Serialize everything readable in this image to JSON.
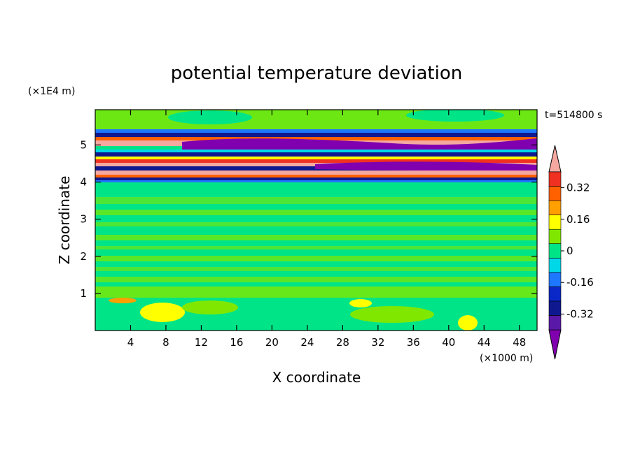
{
  "chart_data": {
    "type": "heatmap",
    "title": "potential temperature deviation",
    "xlabel": "X coordinate",
    "ylabel": "Z coordinate",
    "x_unit": "(×1000 m)",
    "y_unit": "(×1E4 m)",
    "time_label": "t=514800 s",
    "xlim": [
      0,
      50
    ],
    "ylim": [
      0,
      5.95
    ],
    "x_ticks": [
      4,
      8,
      12,
      16,
      20,
      24,
      28,
      32,
      36,
      40,
      44,
      48
    ],
    "y_ticks": [
      1,
      2,
      3,
      4,
      5
    ],
    "colorbar": {
      "levels": [
        -0.4,
        -0.32,
        -0.24,
        -0.16,
        -0.08,
        0,
        0.08,
        0.16,
        0.24,
        0.32,
        0.4
      ],
      "colors": [
        "#8000b0",
        "#5a18a8",
        "#101890",
        "#0a28c8",
        "#1e78ff",
        "#00d8e8",
        "#00e488",
        "#80e800",
        "#ffff00",
        "#ffa000",
        "#ff6000",
        "#f03020",
        "#f4a8a0"
      ],
      "labels": [
        "0.32",
        "0.16",
        "0",
        "-0.16",
        "-0.32"
      ],
      "label_values": [
        0.32,
        0.16,
        0,
        -0.16,
        -0.32
      ]
    },
    "features": [
      {
        "name": "upper shear layer",
        "z_range": [
          4.0,
          5.4
        ],
        "values": "mixed -0.4 to 0.4"
      },
      {
        "name": "lower turbulent layer",
        "z_range": [
          0.0,
          3.8
        ],
        "values": "mostly -0.08 to 0.08"
      },
      {
        "name": "warm patches near surface",
        "z_range": [
          0.2,
          1.0
        ],
        "values": "0.16"
      }
    ]
  }
}
